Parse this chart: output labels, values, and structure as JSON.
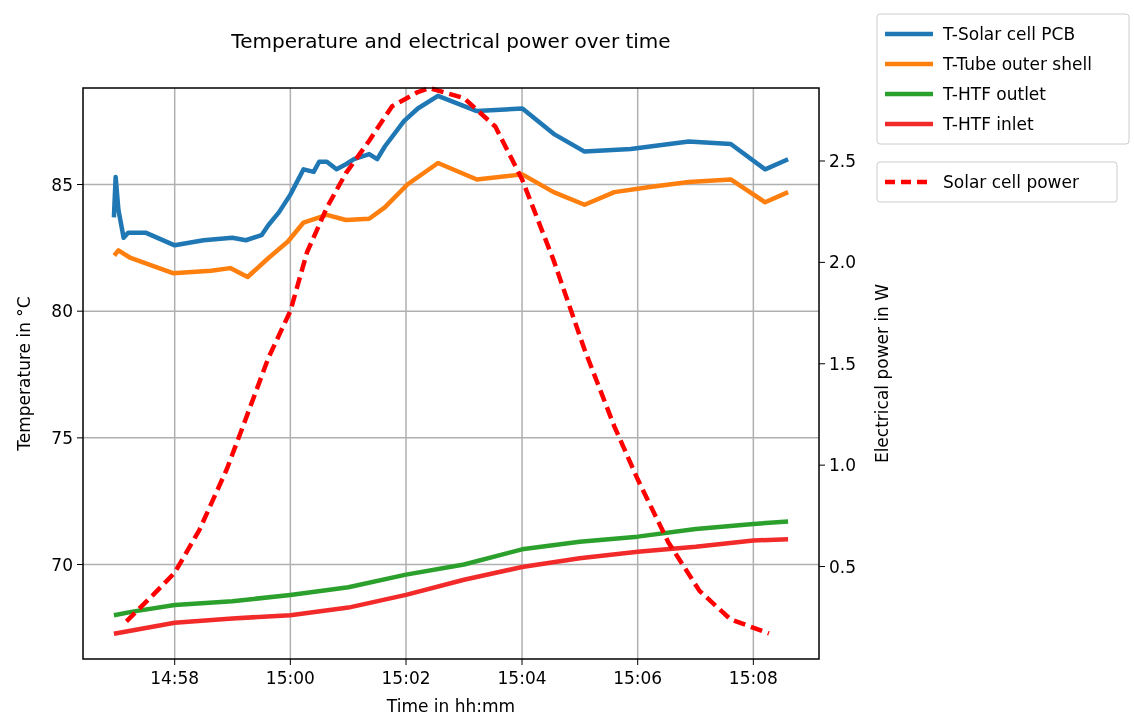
{
  "chart_data": {
    "type": "line",
    "title": "Temperature and electrical power over time",
    "xlabel": "Time in hh:mm",
    "ylabel": "Temperature in °C",
    "y2label": "Electrical power in W",
    "xlim": [
      14.9403,
      15.1522
    ],
    "xticks": [
      {
        "value": 14.9667,
        "label": "14:58"
      },
      {
        "value": 15.0,
        "label": "15:00"
      },
      {
        "value": 15.0333,
        "label": "15:02"
      },
      {
        "value": 15.0667,
        "label": "15:04"
      },
      {
        "value": 15.1,
        "label": "15:06"
      },
      {
        "value": 15.1333,
        "label": "15:08"
      }
    ],
    "ylim": [
      66.27,
      88.81
    ],
    "yticks": [
      70,
      75,
      80,
      85
    ],
    "y2lim": [
      0.044,
      2.86
    ],
    "y2ticks": [
      0.5,
      {
        "value": 1,
        "label": "1.0"
      },
      1.5,
      {
        "value": 2,
        "label": "2.0"
      },
      2.5
    ],
    "grid": true,
    "legend": "top right",
    "series": [
      {
        "name": "T-Solar cell PCB",
        "color": "#1f77b4",
        "line_style": "solid",
        "x": [
          14.9492,
          14.9497,
          14.9505,
          14.952,
          14.9533,
          14.9583,
          14.9667,
          14.975,
          14.9833,
          14.9872,
          14.9917,
          14.9937,
          14.9967,
          15.0,
          15.0038,
          15.0067,
          15.0083,
          15.0105,
          15.0133,
          15.016,
          15.0183,
          15.0227,
          15.025,
          15.0272,
          15.0327,
          15.0367,
          15.0425,
          15.0537,
          15.0668,
          15.0758,
          15.0847,
          15.098,
          15.1147,
          15.1268,
          15.1367,
          15.1433
        ],
        "values": [
          83.7,
          85.3,
          84.0,
          82.9,
          83.1,
          83.1,
          82.6,
          82.8,
          82.9,
          82.8,
          83.0,
          83.4,
          83.9,
          84.6,
          85.6,
          85.5,
          85.9,
          85.9,
          85.6,
          85.8,
          86.0,
          86.2,
          86.0,
          86.5,
          87.5,
          88.0,
          88.5,
          87.9,
          88.0,
          87.0,
          86.3,
          86.4,
          86.7,
          86.6,
          85.6,
          86.0
        ]
      },
      {
        "name": "T-Tube outer shell",
        "color": "#ff7f0e",
        "line_style": "solid",
        "x": [
          14.9493,
          14.9505,
          14.954,
          14.9662,
          14.9772,
          14.9827,
          14.9877,
          14.9937,
          14.9993,
          15.0038,
          15.0105,
          15.016,
          15.0227,
          15.0272,
          15.0337,
          15.0425,
          15.0537,
          15.0668,
          15.0758,
          15.0847,
          15.0933,
          15.1035,
          15.1147,
          15.1268,
          15.1367,
          15.1433
        ],
        "values": [
          82.2,
          82.4,
          82.1,
          81.5,
          81.6,
          81.7,
          81.35,
          82.1,
          82.75,
          83.5,
          83.8,
          83.6,
          83.65,
          84.1,
          85.0,
          85.85,
          85.2,
          85.4,
          84.7,
          84.2,
          84.7,
          84.9,
          85.1,
          85.2,
          84.3,
          84.7
        ]
      },
      {
        "name": "T-HTF outlet",
        "color": "#2ca02c",
        "line_style": "solid",
        "x": [
          14.9492,
          14.955,
          14.9667,
          14.9833,
          15.0,
          15.0167,
          15.0333,
          15.05,
          15.0667,
          15.0833,
          15.1,
          15.1167,
          15.1333,
          15.1433
        ],
        "values": [
          68.0,
          68.15,
          68.4,
          68.55,
          68.8,
          69.1,
          69.6,
          70.0,
          70.6,
          70.9,
          71.1,
          71.4,
          71.6,
          71.7
        ]
      },
      {
        "name": "T-HTF inlet",
        "color": "#f22a2a",
        "line_style": "solid",
        "x": [
          14.9492,
          14.9667,
          14.9833,
          15.0,
          15.0167,
          15.0333,
          15.05,
          15.0667,
          15.0833,
          15.1,
          15.1167,
          15.1333,
          15.1433
        ],
        "values": [
          67.27,
          67.7,
          67.87,
          68.0,
          68.3,
          68.8,
          69.4,
          69.9,
          70.25,
          70.5,
          70.7,
          70.95,
          71.0
        ]
      },
      {
        "name": "Solar cell power",
        "color": "#ff0000",
        "axis": "y2",
        "line_style": "dashed",
        "x": [
          14.9528,
          14.9605,
          14.9667,
          14.9738,
          14.9817,
          14.9872,
          14.9937,
          15.0,
          15.0048,
          15.0105,
          15.016,
          15.0227,
          15.0293,
          15.0367,
          15.04,
          15.05,
          15.059,
          15.0667,
          15.0758,
          15.0847,
          15.0933,
          15.1,
          15.1088,
          15.1178,
          15.1267,
          15.1378
        ],
        "values": [
          0.23,
          0.36,
          0.47,
          0.68,
          0.98,
          1.23,
          1.53,
          1.76,
          2.05,
          2.27,
          2.44,
          2.6,
          2.77,
          2.84,
          2.86,
          2.81,
          2.67,
          2.41,
          2.01,
          1.57,
          1.19,
          0.93,
          0.62,
          0.38,
          0.24,
          0.17
        ]
      }
    ]
  }
}
